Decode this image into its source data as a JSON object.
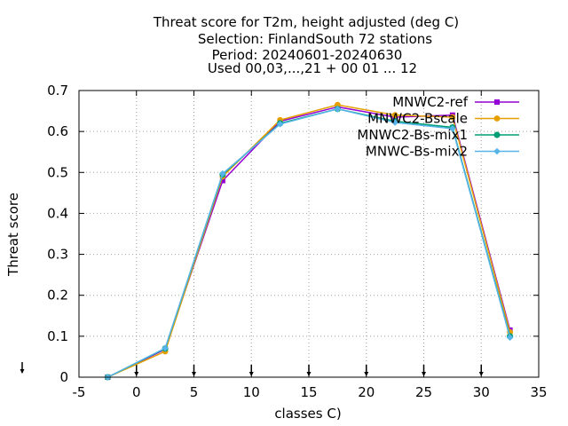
{
  "chart_data": {
    "type": "line",
    "title_lines": [
      "Threat score  for T2m, height adjusted (deg C)",
      "Selection: FinlandSouth     72 stations",
      "Period: 20240601-20240630",
      "Used 00,03,...,21 + 00 01 ... 12"
    ],
    "xlabel": "classes C)",
    "ylabel": "Threat score",
    "xlim": [
      -5,
      35
    ],
    "ylim": [
      0,
      0.7
    ],
    "xticks": [
      -5,
      0,
      5,
      10,
      15,
      20,
      25,
      30,
      35
    ],
    "yticks": [
      0,
      0.1,
      0.2,
      0.3,
      0.4,
      0.5,
      0.6,
      0.7
    ],
    "x_tick_labels": [
      "-5",
      "0",
      "5",
      "10",
      "15",
      "20",
      "25",
      "30",
      "35"
    ],
    "y_tick_labels": [
      "0",
      "0.1",
      "0.2",
      "0.3",
      "0.4",
      "0.5",
      "0.6",
      "0.7"
    ],
    "class_boundaries": [
      0,
      5,
      10,
      15,
      20,
      25,
      30
    ],
    "grid": true,
    "legend_position": "top-right",
    "x": [
      -2.5,
      2.5,
      7.5,
      12.5,
      17.5,
      22.5,
      27.5,
      32.5
    ],
    "series": [
      {
        "name": "MNWC2-ref",
        "color": "#9400d3",
        "values": [
          0.0,
          0.068,
          0.48,
          0.625,
          0.66,
          0.635,
          0.64,
          0.115
        ]
      },
      {
        "name": "MNWC2-Bscale",
        "color": "#e69f00",
        "values": [
          0.0,
          0.063,
          0.49,
          0.628,
          0.665,
          0.64,
          0.635,
          0.11
        ]
      },
      {
        "name": "MNWC2-Bs-mix1",
        "color": "#009e73",
        "values": [
          0.0,
          0.07,
          0.495,
          0.62,
          0.655,
          0.625,
          0.61,
          0.1
        ]
      },
      {
        "name": "MNWC-Bs-mix2",
        "color": "#56b4e9",
        "values": [
          0.0,
          0.071,
          0.497,
          0.618,
          0.655,
          0.622,
          0.607,
          0.097
        ]
      }
    ]
  }
}
